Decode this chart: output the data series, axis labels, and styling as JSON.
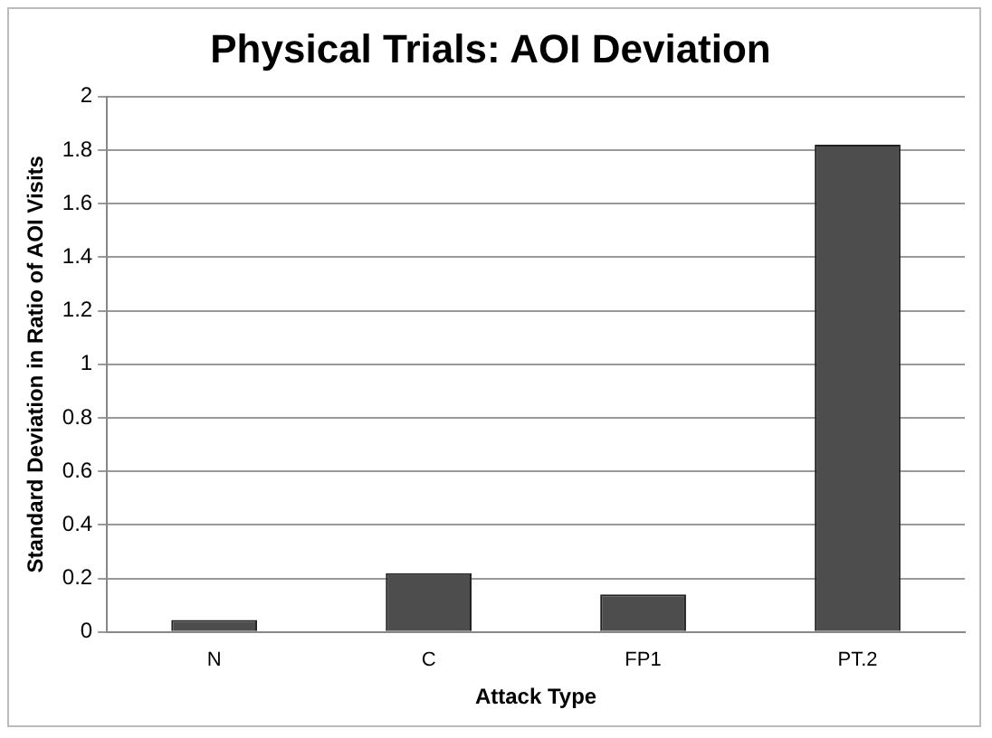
{
  "chart_data": {
    "type": "bar",
    "title": "Physical Trials: AOI Deviation",
    "xlabel": "Attack Type",
    "ylabel": "Standard Deviation in Ratio of AOI Visits",
    "categories": [
      "N",
      "C",
      "FP1",
      "PT.2"
    ],
    "values": [
      0.045,
      0.22,
      0.14,
      1.82
    ],
    "color": "#4d4d4d",
    "ylim": [
      0,
      2
    ],
    "yticks": [
      0,
      0.2,
      0.4,
      0.6,
      0.8,
      1,
      1.2,
      1.4,
      1.6,
      1.8,
      2
    ],
    "grid": "y",
    "legend": false
  }
}
